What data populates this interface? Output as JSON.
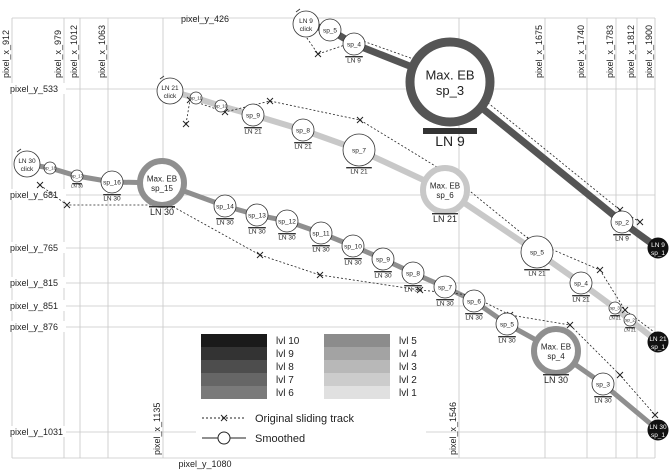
{
  "figure": {
    "grid_labels": {
      "top_x": [
        "pixel_x_912",
        "pixel_x_979",
        "pixel_x_1012",
        "pixel_x_1063",
        "pixel_x_1675",
        "pixel_x_1740",
        "pixel_x_1783",
        "pixel_x_1812",
        "pixel_x_1900"
      ],
      "bottom_x": [
        "pixel_x_1135",
        "pixel_x_1546"
      ],
      "top_y": "pixel_y_426",
      "bottom_y": "pixel_y_1080",
      "left_y": [
        "pixel_y_533",
        "pixel_y_681",
        "pixel_y_765",
        "pixel_y_815",
        "pixel_y_851",
        "pixel_y_876",
        "pixel_y_1031"
      ]
    },
    "legend": {
      "levels_dark": [
        "lvl 10",
        "lvl 9",
        "lvl 8",
        "lvl 7",
        "lvl 6"
      ],
      "levels_light": [
        "lvl 5",
        "lvl 4",
        "lvl 3",
        "lvl 2",
        "lvl 1"
      ],
      "colors_dark": [
        "#1a1a1a",
        "#333333",
        "#4d4d4d",
        "#666666",
        "#7a7a7a"
      ],
      "colors_light": [
        "#8c8c8c",
        "#a3a3a3",
        "#b8b8b8",
        "#cccccc",
        "#e0e0e0"
      ],
      "original_track_label": "Original sliding track",
      "smoothed_label": "Smoothed"
    },
    "tracks": [
      {
        "name": "LN 9",
        "color": "#555555",
        "start_label": [
          "LN 9",
          "click"
        ],
        "nodes": [
          {
            "label": [
              "sp_5"
            ],
            "size": "small"
          },
          {
            "label": [
              "sp_4"
            ],
            "sub": "LN 9",
            "size": "small"
          },
          {
            "label": [
              "Max. EB",
              "sp_3"
            ],
            "sub": "LN 9",
            "size": "huge"
          },
          {
            "label": [
              "sp_2"
            ],
            "sub": "LN 9",
            "size": "small"
          },
          {
            "label": [
              "LN 9",
              "sp_1"
            ],
            "size": "end"
          }
        ]
      },
      {
        "name": "LN 21",
        "color": "#c8c8c8",
        "start_label": [
          "LN 21",
          "click"
        ],
        "nodes": [
          {
            "label": [
              "sp_11"
            ],
            "size": "tiny"
          },
          {
            "label": [
              "sp_10"
            ],
            "size": "tiny"
          },
          {
            "label": [
              "sp_9"
            ],
            "sub": "LN 21",
            "size": "small"
          },
          {
            "label": [
              "sp_8"
            ],
            "sub": "LN 21",
            "size": "small"
          },
          {
            "label": [
              "sp_7"
            ],
            "sub": "LN 21",
            "size": "medium"
          },
          {
            "label": [
              "Max. EB",
              "sp_6"
            ],
            "sub": "LN 21",
            "size": "large"
          },
          {
            "label": [
              "sp_5"
            ],
            "sub": "LN 21",
            "size": "medium"
          },
          {
            "label": [
              "sp_4"
            ],
            "sub": "LN 21",
            "size": "small"
          },
          {
            "label": [
              "sp_3"
            ],
            "sub": "LN 21",
            "size": "tiny"
          },
          {
            "label": [
              "sp_2"
            ],
            "sub": "LN 21",
            "size": "tiny"
          },
          {
            "label": [
              "LN 21",
              "sp_1"
            ],
            "size": "end"
          }
        ]
      },
      {
        "name": "LN 30",
        "color": "#8f8f8f",
        "start_label": [
          "LN 30",
          "click"
        ],
        "nodes": [
          {
            "label": [
              "sp_18"
            ],
            "size": "tiny"
          },
          {
            "label": [
              "sp_17"
            ],
            "sub": "LN 30",
            "size": "tiny"
          },
          {
            "label": [
              "sp_16"
            ],
            "sub": "LN 30",
            "size": "small"
          },
          {
            "label": [
              "Max. EB",
              "sp_15"
            ],
            "sub": "LN 30",
            "size": "large"
          },
          {
            "label": [
              "sp_14"
            ],
            "sub": "LN 30",
            "size": "small"
          },
          {
            "label": [
              "sp_13"
            ],
            "sub": "LN 30",
            "size": "small"
          },
          {
            "label": [
              "sp_12"
            ],
            "sub": "LN 30",
            "size": "small"
          },
          {
            "label": [
              "sp_11"
            ],
            "sub": "LN 30",
            "size": "small"
          },
          {
            "label": [
              "sp_10"
            ],
            "sub": "LN 30",
            "size": "small"
          },
          {
            "label": [
              "sp_9"
            ],
            "sub": "LN 30",
            "size": "small"
          },
          {
            "label": [
              "sp_8"
            ],
            "sub": "LN 30",
            "size": "small"
          },
          {
            "label": [
              "sp_7"
            ],
            "sub": "LN 30",
            "size": "small"
          },
          {
            "label": [
              "sp_6"
            ],
            "sub": "LN 30",
            "size": "small"
          },
          {
            "label": [
              "sp_5"
            ],
            "sub": "LN 30",
            "size": "small"
          },
          {
            "label": [
              "Max. EB",
              "sp_4"
            ],
            "sub": "LN 30",
            "size": "large"
          },
          {
            "label": [
              "sp_3"
            ],
            "sub": "LN 30",
            "size": "small"
          },
          {
            "label": [
              "LN 30",
              "sp_1"
            ],
            "size": "end"
          }
        ]
      }
    ]
  }
}
